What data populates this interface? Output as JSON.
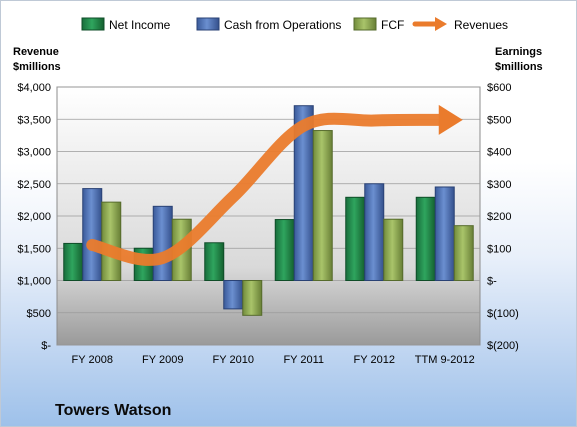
{
  "colors": {
    "net_income": "#1f8a4c",
    "cash_ops": "#4a6fb5",
    "fcf": "#8fad52",
    "revenues": "#ea7b2c"
  },
  "chart_data": {
    "type": "bar",
    "categories": [
      "FY 2008",
      "FY 2009",
      "FY 2010",
      "FY 2011",
      "FY 2012",
      "TTM 9-2012"
    ],
    "series": [
      {
        "name": "Net Income",
        "axis": "right",
        "values": [
          115,
          100,
          117,
          189,
          258,
          258
        ]
      },
      {
        "name": "Cash from Operations",
        "axis": "right",
        "values": [
          285,
          230,
          -88,
          542,
          300,
          290
        ]
      },
      {
        "name": "FCF",
        "axis": "right",
        "values": [
          243,
          190,
          -108,
          465,
          190,
          170
        ]
      },
      {
        "name": "Revenues",
        "type": "line",
        "axis": "left",
        "values": [
          1550,
          1350,
          2300,
          3400,
          3480,
          3490
        ]
      }
    ],
    "legend": [
      "Net Income",
      "Cash from Operations",
      "FCF",
      "Revenues"
    ],
    "legend_position": "top",
    "left_axis": {
      "title_line1": "Revenue",
      "title_line2": "$millions",
      "ylim": [
        0,
        4000
      ],
      "tick_values": [
        0,
        500,
        1000,
        1500,
        2000,
        2500,
        3000,
        3500,
        4000
      ],
      "tick_labels": [
        "$-",
        "$500",
        "$1,000",
        "$1,500",
        "$2,000",
        "$2,500",
        "$3,000",
        "$3,500",
        "$4,000"
      ]
    },
    "right_axis": {
      "title_line1": "Earnings",
      "title_line2": "$millions",
      "ylim": [
        -200,
        600
      ],
      "tick_values": [
        -200,
        -100,
        0,
        100,
        200,
        300,
        400,
        500,
        600
      ],
      "tick_labels": [
        "$(200)",
        "$(100)",
        "$-",
        "$100",
        "$200",
        "$300",
        "$400",
        "$500",
        "$600"
      ]
    },
    "company": "Towers Watson"
  }
}
